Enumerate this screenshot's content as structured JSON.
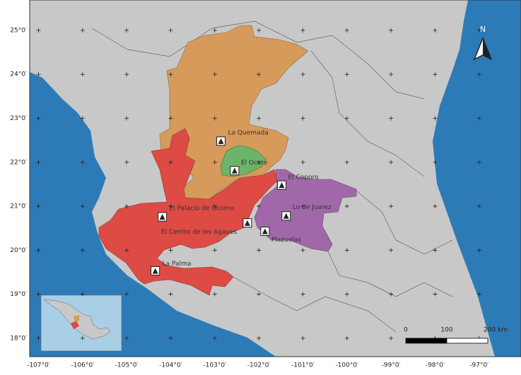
{
  "map": {
    "xlim": [
      -107.2,
      -96.05
    ],
    "ylim": [
      17.58,
      25.69
    ],
    "lon_ticks": [
      {
        "value": -107,
        "label": "-107°0′"
      },
      {
        "value": -106,
        "label": "-106°0′"
      },
      {
        "value": -105,
        "label": "-105°0′"
      },
      {
        "value": -104,
        "label": "-104°0′"
      },
      {
        "value": -103,
        "label": "-103°0′"
      },
      {
        "value": -102,
        "label": "-102°0′"
      },
      {
        "value": -101,
        "label": "-101°0′"
      },
      {
        "value": -100,
        "label": "-100°0′"
      },
      {
        "value": -99,
        "label": "-99°0′"
      },
      {
        "value": -98,
        "label": "-98°0′"
      },
      {
        "value": -97,
        "label": "-97°0′"
      }
    ],
    "lat_ticks": [
      {
        "value": 25,
        "label": "25°0′"
      },
      {
        "value": 24,
        "label": "24°0′"
      },
      {
        "value": 23,
        "label": "23°0′"
      },
      {
        "value": 22,
        "label": "22°0′"
      },
      {
        "value": 21,
        "label": "21°0′"
      },
      {
        "value": 20,
        "label": "20°0′"
      },
      {
        "value": 19,
        "label": "19°0′"
      },
      {
        "value": 18,
        "label": "18°0′"
      }
    ],
    "sites": [
      {
        "name": "La Quemada",
        "lon": -102.86,
        "lat": 22.48
      },
      {
        "name": "El Ocote",
        "lon": -102.55,
        "lat": 21.81
      },
      {
        "name": "El Coporo",
        "lon": -101.48,
        "lat": 21.48
      },
      {
        "name": "Lo de Juarez",
        "lon": -101.38,
        "lat": 20.78
      },
      {
        "name": "Plazuelas",
        "lon": -101.86,
        "lat": 20.43
      },
      {
        "name": "El Cerrito de los Agaves",
        "lon": -102.26,
        "lat": 20.62
      },
      {
        "name": "El Palacio de Ocomo",
        "lon": -104.19,
        "lat": 20.76
      },
      {
        "name": "La Palma",
        "lon": -104.35,
        "lat": 19.53
      }
    ],
    "scale_ticks": [
      0,
      100,
      {
        "value": 200,
        "label": "200 km"
      }
    ],
    "north": "N"
  }
}
